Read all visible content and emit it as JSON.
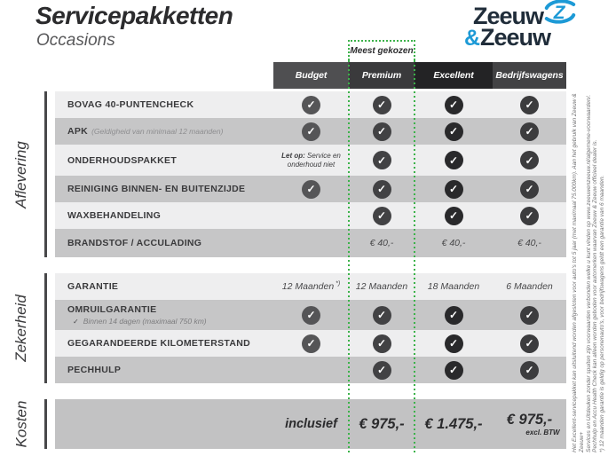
{
  "page": {
    "title": "Servicepakketten",
    "subtitle": "Occasions"
  },
  "logo": {
    "line1": "Zeeuw",
    "amp": "&",
    "line2": "Zeeuw",
    "navy": "#202d3a",
    "blue": "#1d9ad6"
  },
  "icons": {
    "check_glyph": "✓",
    "sub_check_glyph": "✓"
  },
  "table": {
    "most_chosen_label": "Meest gekozen",
    "accent_green": "#3cb24a",
    "row_light": "#eeeeef",
    "row_dark": "#c6c6c7",
    "footer_bg": "#c2c2c3",
    "columns": [
      {
        "label": "Budget",
        "header_color": "#4f4f51",
        "check_color": "#555557"
      },
      {
        "label": "Premium",
        "header_color": "#3a3a3c",
        "check_color": "#424244",
        "highlight": true
      },
      {
        "label": "Excellent",
        "header_color": "#232325",
        "check_color": "#29292b"
      },
      {
        "label": "Bedrijfswagens",
        "header_color": "#424244",
        "check_color": "#3c3c3e"
      }
    ],
    "sections": [
      {
        "name": "Aflevering",
        "rows": [
          {
            "label": "BOVAG 40-PUNTENCHECK",
            "cells": [
              "check",
              "check",
              "check",
              "check"
            ]
          },
          {
            "label": "APK",
            "sublabel_inline": "(Geldigheid van minimaal 12 maanden)",
            "cells": [
              "check",
              "check",
              "check",
              "check"
            ]
          },
          {
            "label": "ONDERHOUDSPAKKET",
            "cells": [
              {
                "note_bold": "Let op:",
                "note_text": "Service en onderhoud niet"
              },
              "check",
              "check",
              "check"
            ]
          },
          {
            "label": "REINIGING BINNEN- EN BUITENZIJDE",
            "cells": [
              "check",
              "check",
              "check",
              "check"
            ]
          },
          {
            "label": "WAXBEHANDELING",
            "cells": [
              "",
              "check",
              "check",
              "check"
            ]
          },
          {
            "label": "BRANDSTOF / ACCULADING",
            "cells": [
              "",
              "€ 40,-",
              "€ 40,-",
              "€ 40,-"
            ]
          }
        ]
      },
      {
        "name": "Zekerheid",
        "rows": [
          {
            "label": "GARANTIE",
            "cells": [
              {
                "text": "12 Maanden",
                "sup": "*)"
              },
              "12 Maanden",
              "18 Maanden",
              "6 Maanden"
            ]
          },
          {
            "label": "OMRUILGARANTIE",
            "sublabel_below": "Binnen 14 dagen (maximaal 750 km)",
            "cells": [
              "check",
              "check",
              "check",
              "check"
            ]
          },
          {
            "label": "GEGARANDEERDE KILOMETERSTAND",
            "cells": [
              "check",
              "check",
              "check",
              "check"
            ]
          },
          {
            "label": "PECHHULP",
            "cells": [
              "",
              "check",
              "check",
              "check"
            ]
          }
        ]
      }
    ],
    "footer": {
      "name": "Kosten",
      "cells": [
        {
          "label": "inclusief"
        },
        {
          "price": "€ 975,-"
        },
        {
          "price": "€ 1.475,-"
        },
        {
          "price": "€ 975,-",
          "note": "excl. BTW"
        }
      ]
    }
  },
  "footnotes": [
    "Het Excellent-servicepakket kan uitsluitend worden afgesloten voor auto's tot 5 jaar (met maximaal 75.000km). Aan het gebruik van Zeeuw & Zeeuw+",
    "Services en Uitdeuken zonder spuiten zijn voorwaarden verbonden welke u kunt vinden op www.zeeuwenzeeuw.nl/algemene-voorwaarden/.",
    "Pechhulp en Accu Health Check kan alleen worden geboden voor automerken waarvan Zeeuw & Zeeuw officieel dealer is.",
    "*) 12 maanden garantie is geldig op personenauto's, voor bedrijfswagens geldt een garantie van 6 maanden."
  ]
}
